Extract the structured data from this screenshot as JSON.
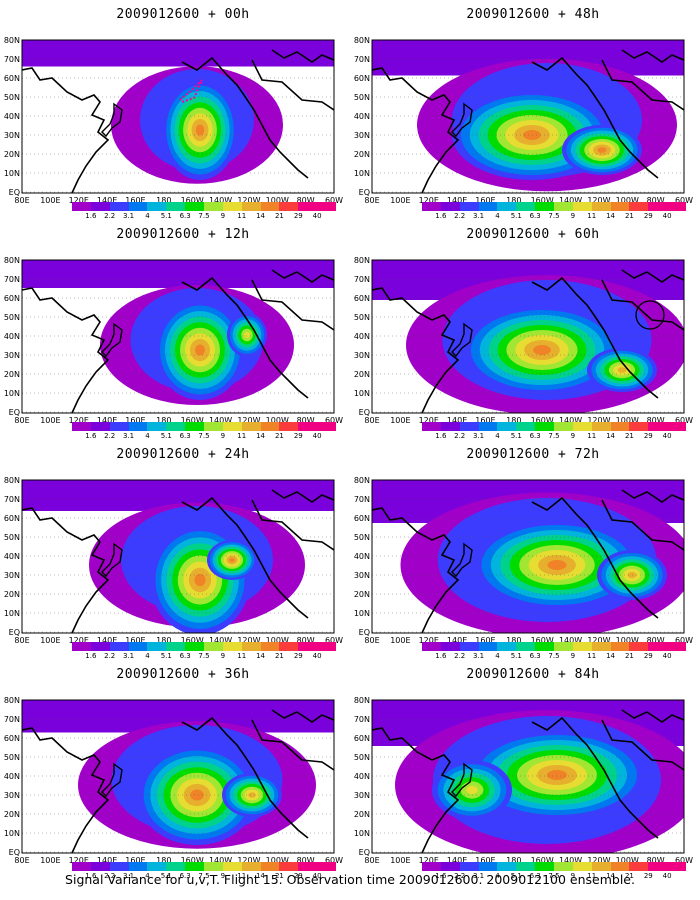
{
  "footer": "Signal Variance for u,v,T. Flight 15. Observation time 2009012600. 2009012100 ensemble.",
  "lat_labels": [
    "80N",
    "70N",
    "60N",
    "50N",
    "40N",
    "30N",
    "20N",
    "10N",
    "EQ"
  ],
  "lon_labels": [
    "80E",
    "100E",
    "120E",
    "140E",
    "160E",
    "180",
    "160W",
    "140W",
    "120W",
    "100W",
    "80W",
    "60W"
  ],
  "colorbar": {
    "labels": [
      "1.6",
      "2.2",
      "3.1",
      "4",
      "5.1",
      "6.3",
      "7.5",
      "9",
      "11",
      "14",
      "21",
      "29",
      "40"
    ],
    "colors": [
      "#a000c8",
      "#7a00dc",
      "#3c3cff",
      "#0078f0",
      "#00b4dc",
      "#00d28c",
      "#00dc00",
      "#a0e632",
      "#e6dc32",
      "#e6af2d",
      "#f08228",
      "#fa3c3c",
      "#f00082"
    ]
  },
  "panels": [
    {
      "title": "2009012600 + 00h",
      "hot": [
        {
          "cx": 178,
          "cy": 90,
          "rx": 38,
          "ry": 50,
          "lvl": 8
        }
      ],
      "spread": 0.6,
      "band": 0.15,
      "marker": "flight"
    },
    {
      "title": "2009012600 + 48h",
      "hot": [
        {
          "cx": 160,
          "cy": 95,
          "rx": 80,
          "ry": 45,
          "lvl": 8
        },
        {
          "cx": 230,
          "cy": 110,
          "rx": 40,
          "ry": 25,
          "lvl": 8
        }
      ],
      "spread": 1.0,
      "band": 0.45,
      "marker": "none"
    },
    {
      "title": "2009012600 + 12h",
      "hot": [
        {
          "cx": 178,
          "cy": 90,
          "rx": 45,
          "ry": 50,
          "lvl": 8
        },
        {
          "cx": 225,
          "cy": 75,
          "rx": 20,
          "ry": 22,
          "lvl": 6
        }
      ],
      "spread": 0.7,
      "band": 0.2,
      "marker": "none"
    },
    {
      "title": "2009012600 + 60h",
      "hot": [
        {
          "cx": 170,
          "cy": 90,
          "rx": 80,
          "ry": 45,
          "lvl": 8
        },
        {
          "cx": 250,
          "cy": 110,
          "rx": 35,
          "ry": 22,
          "lvl": 7
        }
      ],
      "spread": 1.1,
      "band": 0.6,
      "marker": "circle"
    },
    {
      "title": "2009012600 + 24h",
      "hot": [
        {
          "cx": 178,
          "cy": 100,
          "rx": 50,
          "ry": 55,
          "lvl": 8
        },
        {
          "cx": 210,
          "cy": 80,
          "rx": 25,
          "ry": 20,
          "lvl": 8
        }
      ],
      "spread": 0.8,
      "band": 0.3,
      "marker": "none"
    },
    {
      "title": "2009012600 + 72h",
      "hot": [
        {
          "cx": 185,
          "cy": 85,
          "rx": 85,
          "ry": 45,
          "lvl": 8
        },
        {
          "cx": 260,
          "cy": 95,
          "rx": 35,
          "ry": 25,
          "lvl": 7
        }
      ],
      "spread": 1.15,
      "band": 0.7,
      "marker": "none"
    },
    {
      "title": "2009012600 + 36h",
      "hot": [
        {
          "cx": 175,
          "cy": 95,
          "rx": 60,
          "ry": 50,
          "lvl": 8
        },
        {
          "cx": 230,
          "cy": 95,
          "rx": 30,
          "ry": 22,
          "lvl": 7
        }
      ],
      "spread": 0.9,
      "band": 0.35,
      "marker": "none"
    },
    {
      "title": "2009012600 + 84h",
      "hot": [
        {
          "cx": 185,
          "cy": 75,
          "rx": 90,
          "ry": 45,
          "lvl": 8
        },
        {
          "cx": 100,
          "cy": 90,
          "rx": 40,
          "ry": 30,
          "lvl": 6
        }
      ],
      "spread": 1.2,
      "band": 0.8,
      "marker": "none"
    }
  ]
}
